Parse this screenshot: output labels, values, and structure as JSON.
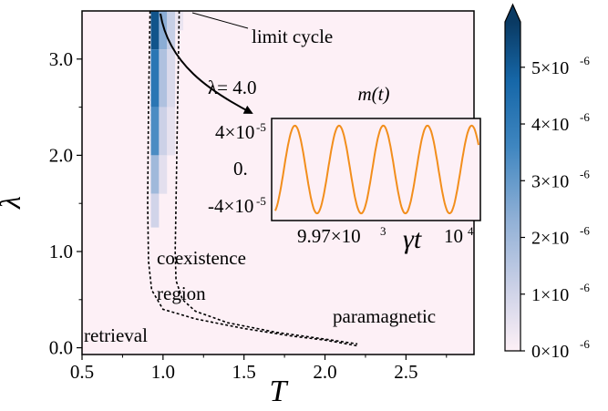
{
  "chart_data": {
    "type": "heatmap",
    "xlabel": "T",
    "ylabel": "λ",
    "xlim": [
      0.5,
      2.92
    ],
    "ylim": [
      -0.07,
      3.5
    ],
    "xticks": [
      0.5,
      1.0,
      1.5,
      2.0,
      2.5
    ],
    "xtick_labels": [
      "0.5",
      "1.0",
      "1.5",
      "2.0",
      "2.5"
    ],
    "yticks": [
      0.0,
      1.0,
      2.0,
      3.0
    ],
    "ytick_labels": [
      "0.0",
      "1.0",
      "2.0",
      "3.0"
    ],
    "background_color": "#fdf0f6",
    "heat_cells": [
      {
        "T": 0.95,
        "lam_min": 3.1,
        "lam_max": 3.5,
        "value": 5.2e-06
      },
      {
        "T": 0.95,
        "lam_min": 2.5,
        "lam_max": 3.1,
        "value": 4.2e-06
      },
      {
        "T": 0.95,
        "lam_min": 2.0,
        "lam_max": 2.5,
        "value": 3.4e-06
      },
      {
        "T": 0.95,
        "lam_min": 1.6,
        "lam_max": 2.0,
        "value": 2e-06
      },
      {
        "T": 0.95,
        "lam_min": 1.25,
        "lam_max": 1.6,
        "value": 1e-06
      },
      {
        "T": 1.0,
        "lam_min": 3.1,
        "lam_max": 3.5,
        "value": 2.4e-06
      },
      {
        "T": 1.0,
        "lam_min": 2.5,
        "lam_max": 3.1,
        "value": 1.7e-06
      },
      {
        "T": 1.0,
        "lam_min": 2.0,
        "lam_max": 2.5,
        "value": 1.1e-06
      },
      {
        "T": 1.0,
        "lam_min": 1.6,
        "lam_max": 2.0,
        "value": 6e-07
      },
      {
        "T": 1.05,
        "lam_min": 3.1,
        "lam_max": 3.5,
        "value": 1.2e-06
      },
      {
        "T": 1.05,
        "lam_min": 2.5,
        "lam_max": 3.1,
        "value": 8e-07
      },
      {
        "T": 1.05,
        "lam_min": 2.0,
        "lam_max": 2.5,
        "value": 5e-07
      },
      {
        "T": 1.1,
        "lam_min": 3.3,
        "lam_max": 3.5,
        "value": 4e-07
      }
    ],
    "boundary_lines": [
      {
        "name": "",
        "T": [
          0.92,
          0.91,
          0.905,
          0.91,
          0.93,
          1.0,
          1.2,
          1.5,
          1.8,
          2.0,
          2.1,
          2.2
        ],
        "lambda": [
          3.5,
          2.5,
          1.5,
          0.9,
          0.6,
          0.4,
          0.3,
          0.2,
          0.12,
          0.08,
          0.05,
          0.02
        ]
      },
      {
        "name": "",
        "T": [
          1.1,
          1.09,
          1.08,
          1.075,
          1.08,
          1.12,
          1.2,
          1.4,
          1.7,
          2.0,
          2.2
        ],
        "lambda": [
          3.5,
          2.5,
          1.5,
          1.0,
          0.7,
          0.5,
          0.38,
          0.26,
          0.16,
          0.09,
          0.04
        ]
      }
    ],
    "region_labels": [
      "limit cycle",
      "coexistence",
      "region",
      "retrieval",
      "paramagnetic"
    ],
    "colorbar": {
      "colors": [
        "#fdf0f6",
        "#0a3a63"
      ],
      "ticks": [
        "0×10",
        "1×10",
        "2×10",
        "3×10",
        "4×10",
        "5×10"
      ],
      "tick_values": [
        0,
        1e-06,
        2e-06,
        3e-06,
        4e-06,
        5e-06
      ],
      "exponent": "-6",
      "max": 5.8e-06
    },
    "inset": {
      "type": "line",
      "title": "m(t)",
      "annotation": "λ= 4.0",
      "xlabel": "γt",
      "xtick_labels": [
        "9.97×10",
        "10"
      ],
      "xtick_exponents": [
        "3",
        "4"
      ],
      "ytick_labels": [
        "4×10",
        "0.",
        "-4×10"
      ],
      "ytick_exponents": [
        "-5",
        "",
        "-5"
      ],
      "ylim": [
        -5e-05,
        5e-05
      ],
      "amplitude": 4.3e-05,
      "periods": 4.6,
      "line_color": "#f28e1c"
    }
  }
}
